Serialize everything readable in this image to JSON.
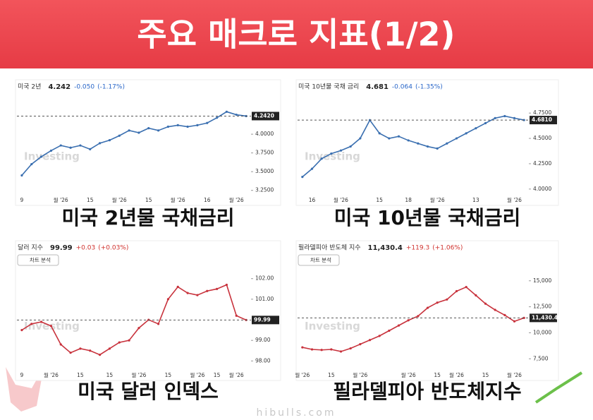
{
  "title": "주요 매크로 지표(1/2)",
  "site": "hibulls.com",
  "watermark": "Investing",
  "chart_data": [
    {
      "type": "line",
      "title": "미국 2년물 국채금리",
      "header": {
        "name": "미국 2년",
        "price": "4.242",
        "change": "-0.050",
        "percent": "(-1.17%)"
      },
      "color": "#3a6fb0",
      "categories": [
        "9",
        null,
        null,
        null,
        "월 '26",
        null,
        null,
        "15",
        null,
        null,
        "월 '26",
        null,
        null,
        "15",
        null,
        null,
        "월 '26",
        null,
        null,
        "16",
        null,
        null,
        "월 '26",
        null
      ],
      "values": [
        3.45,
        3.6,
        3.7,
        3.78,
        3.85,
        3.82,
        3.85,
        3.8,
        3.88,
        3.92,
        3.98,
        4.05,
        4.02,
        4.08,
        4.05,
        4.1,
        4.12,
        4.1,
        4.12,
        4.15,
        4.22,
        4.3,
        4.26,
        4.242
      ],
      "value_labels": [
        null,
        null,
        null,
        null,
        null,
        null,
        null,
        null,
        null,
        null,
        null,
        null,
        null,
        null,
        null,
        null,
        null,
        null,
        null,
        null,
        null,
        null,
        null,
        "4.2420"
      ],
      "ylim": [
        3.2,
        4.35
      ],
      "yticks": [
        {
          "value": 3.25,
          "label": "3.2500"
        },
        {
          "value": 3.5,
          "label": "3.5000"
        },
        {
          "value": 3.75,
          "label": "3.7500"
        },
        {
          "value": 4,
          "label": "4.0000"
        }
      ]
    },
    {
      "type": "line",
      "title": "미국 10년물 국채금리",
      "header": {
        "name": "미국 10년물 국채 금리",
        "price": "4.681",
        "change": "-0.064",
        "percent": "(-1.35%)"
      },
      "color": "#3a6fb0",
      "categories": [
        null,
        "16",
        null,
        null,
        "월 '26",
        null,
        null,
        null,
        "15",
        null,
        null,
        "18",
        null,
        null,
        "월 '26",
        null,
        null,
        null,
        "13",
        null,
        null,
        null,
        "월 '26",
        null
      ],
      "values": [
        4.12,
        4.2,
        4.3,
        4.35,
        4.38,
        4.42,
        4.5,
        4.68,
        4.55,
        4.5,
        4.52,
        4.48,
        4.45,
        4.42,
        4.4,
        4.45,
        4.5,
        4.55,
        4.6,
        4.65,
        4.7,
        4.72,
        4.7,
        4.681
      ],
      "value_labels": [
        null,
        null,
        null,
        null,
        null,
        null,
        null,
        null,
        null,
        null,
        null,
        null,
        null,
        null,
        null,
        null,
        null,
        null,
        null,
        null,
        null,
        null,
        null,
        "4.6810"
      ],
      "ylim": [
        3.95,
        4.8
      ],
      "yticks": [
        {
          "value": 4,
          "label": "4.0000"
        },
        {
          "value": 4.25,
          "label": "4.2500"
        },
        {
          "value": 4.5,
          "label": "4.5000"
        },
        {
          "value": 4.75,
          "label": "4.7500"
        }
      ]
    },
    {
      "type": "line",
      "title": "미국 달러 인덱스",
      "header": {
        "name": "달러 지수",
        "price": "99.99",
        "change": "+0.03",
        "percent": "(+0.03%)"
      },
      "ai_button": "차트 분석",
      "color": "#c8323c",
      "categories": [
        "9",
        null,
        null,
        "월 '26",
        null,
        null,
        "15",
        null,
        null,
        "15",
        null,
        null,
        "월 '26",
        null,
        null,
        "15",
        null,
        null,
        "월 '26",
        null,
        "15",
        null,
        "월 '26",
        null
      ],
      "values": [
        99.5,
        99.8,
        99.9,
        99.7,
        98.8,
        98.4,
        98.6,
        98.5,
        98.3,
        98.6,
        98.9,
        99.0,
        99.6,
        100.0,
        99.8,
        101.0,
        101.6,
        101.3,
        101.2,
        101.4,
        101.5,
        101.7,
        100.2,
        99.99
      ],
      "value_labels": [
        null,
        null,
        null,
        null,
        null,
        null,
        null,
        null,
        null,
        null,
        null,
        null,
        null,
        null,
        null,
        null,
        null,
        null,
        null,
        null,
        null,
        null,
        null,
        "99.99"
      ],
      "ylim": [
        97.6,
        102.3
      ],
      "yticks": [
        {
          "value": 98,
          "label": "98.00"
        },
        {
          "value": 99,
          "label": "99.00"
        },
        {
          "value": 101,
          "label": "101.00"
        },
        {
          "value": 102,
          "label": "102.00"
        }
      ]
    },
    {
      "type": "line",
      "title": "필라델피아 반도체지수",
      "header": {
        "name": "필라델피아 반도체 지수",
        "price": "11,430.4",
        "change": "+119.3",
        "percent": "(+1.06%)"
      },
      "ai_button": "차트 분석",
      "color": "#c8323c",
      "categories": [
        "월 '26",
        null,
        null,
        "15",
        null,
        null,
        "월 '26",
        null,
        null,
        null,
        null,
        "월 '26",
        null,
        null,
        "15",
        null,
        "월 '26",
        null,
        null,
        "15",
        null,
        null,
        "월 '26",
        null
      ],
      "values": [
        8600,
        8400,
        8350,
        8400,
        8200,
        8500,
        8900,
        9300,
        9700,
        10200,
        10700,
        11200,
        11600,
        12400,
        12900,
        13200,
        14000,
        14400,
        13600,
        12800,
        12200,
        11700,
        11100,
        11430.4
      ],
      "value_labels": [
        null,
        null,
        null,
        null,
        null,
        null,
        null,
        null,
        null,
        null,
        null,
        null,
        null,
        null,
        null,
        null,
        null,
        null,
        null,
        null,
        null,
        null,
        null,
        "11,430.40"
      ],
      "ylim": [
        6500,
        15800
      ],
      "yticks": [
        {
          "value": 7500,
          "label": "7,500"
        },
        {
          "value": 10000,
          "label": "10,000"
        },
        {
          "value": 12500,
          "label": "12,500"
        },
        {
          "value": 15000,
          "label": "15,000"
        }
      ]
    }
  ]
}
